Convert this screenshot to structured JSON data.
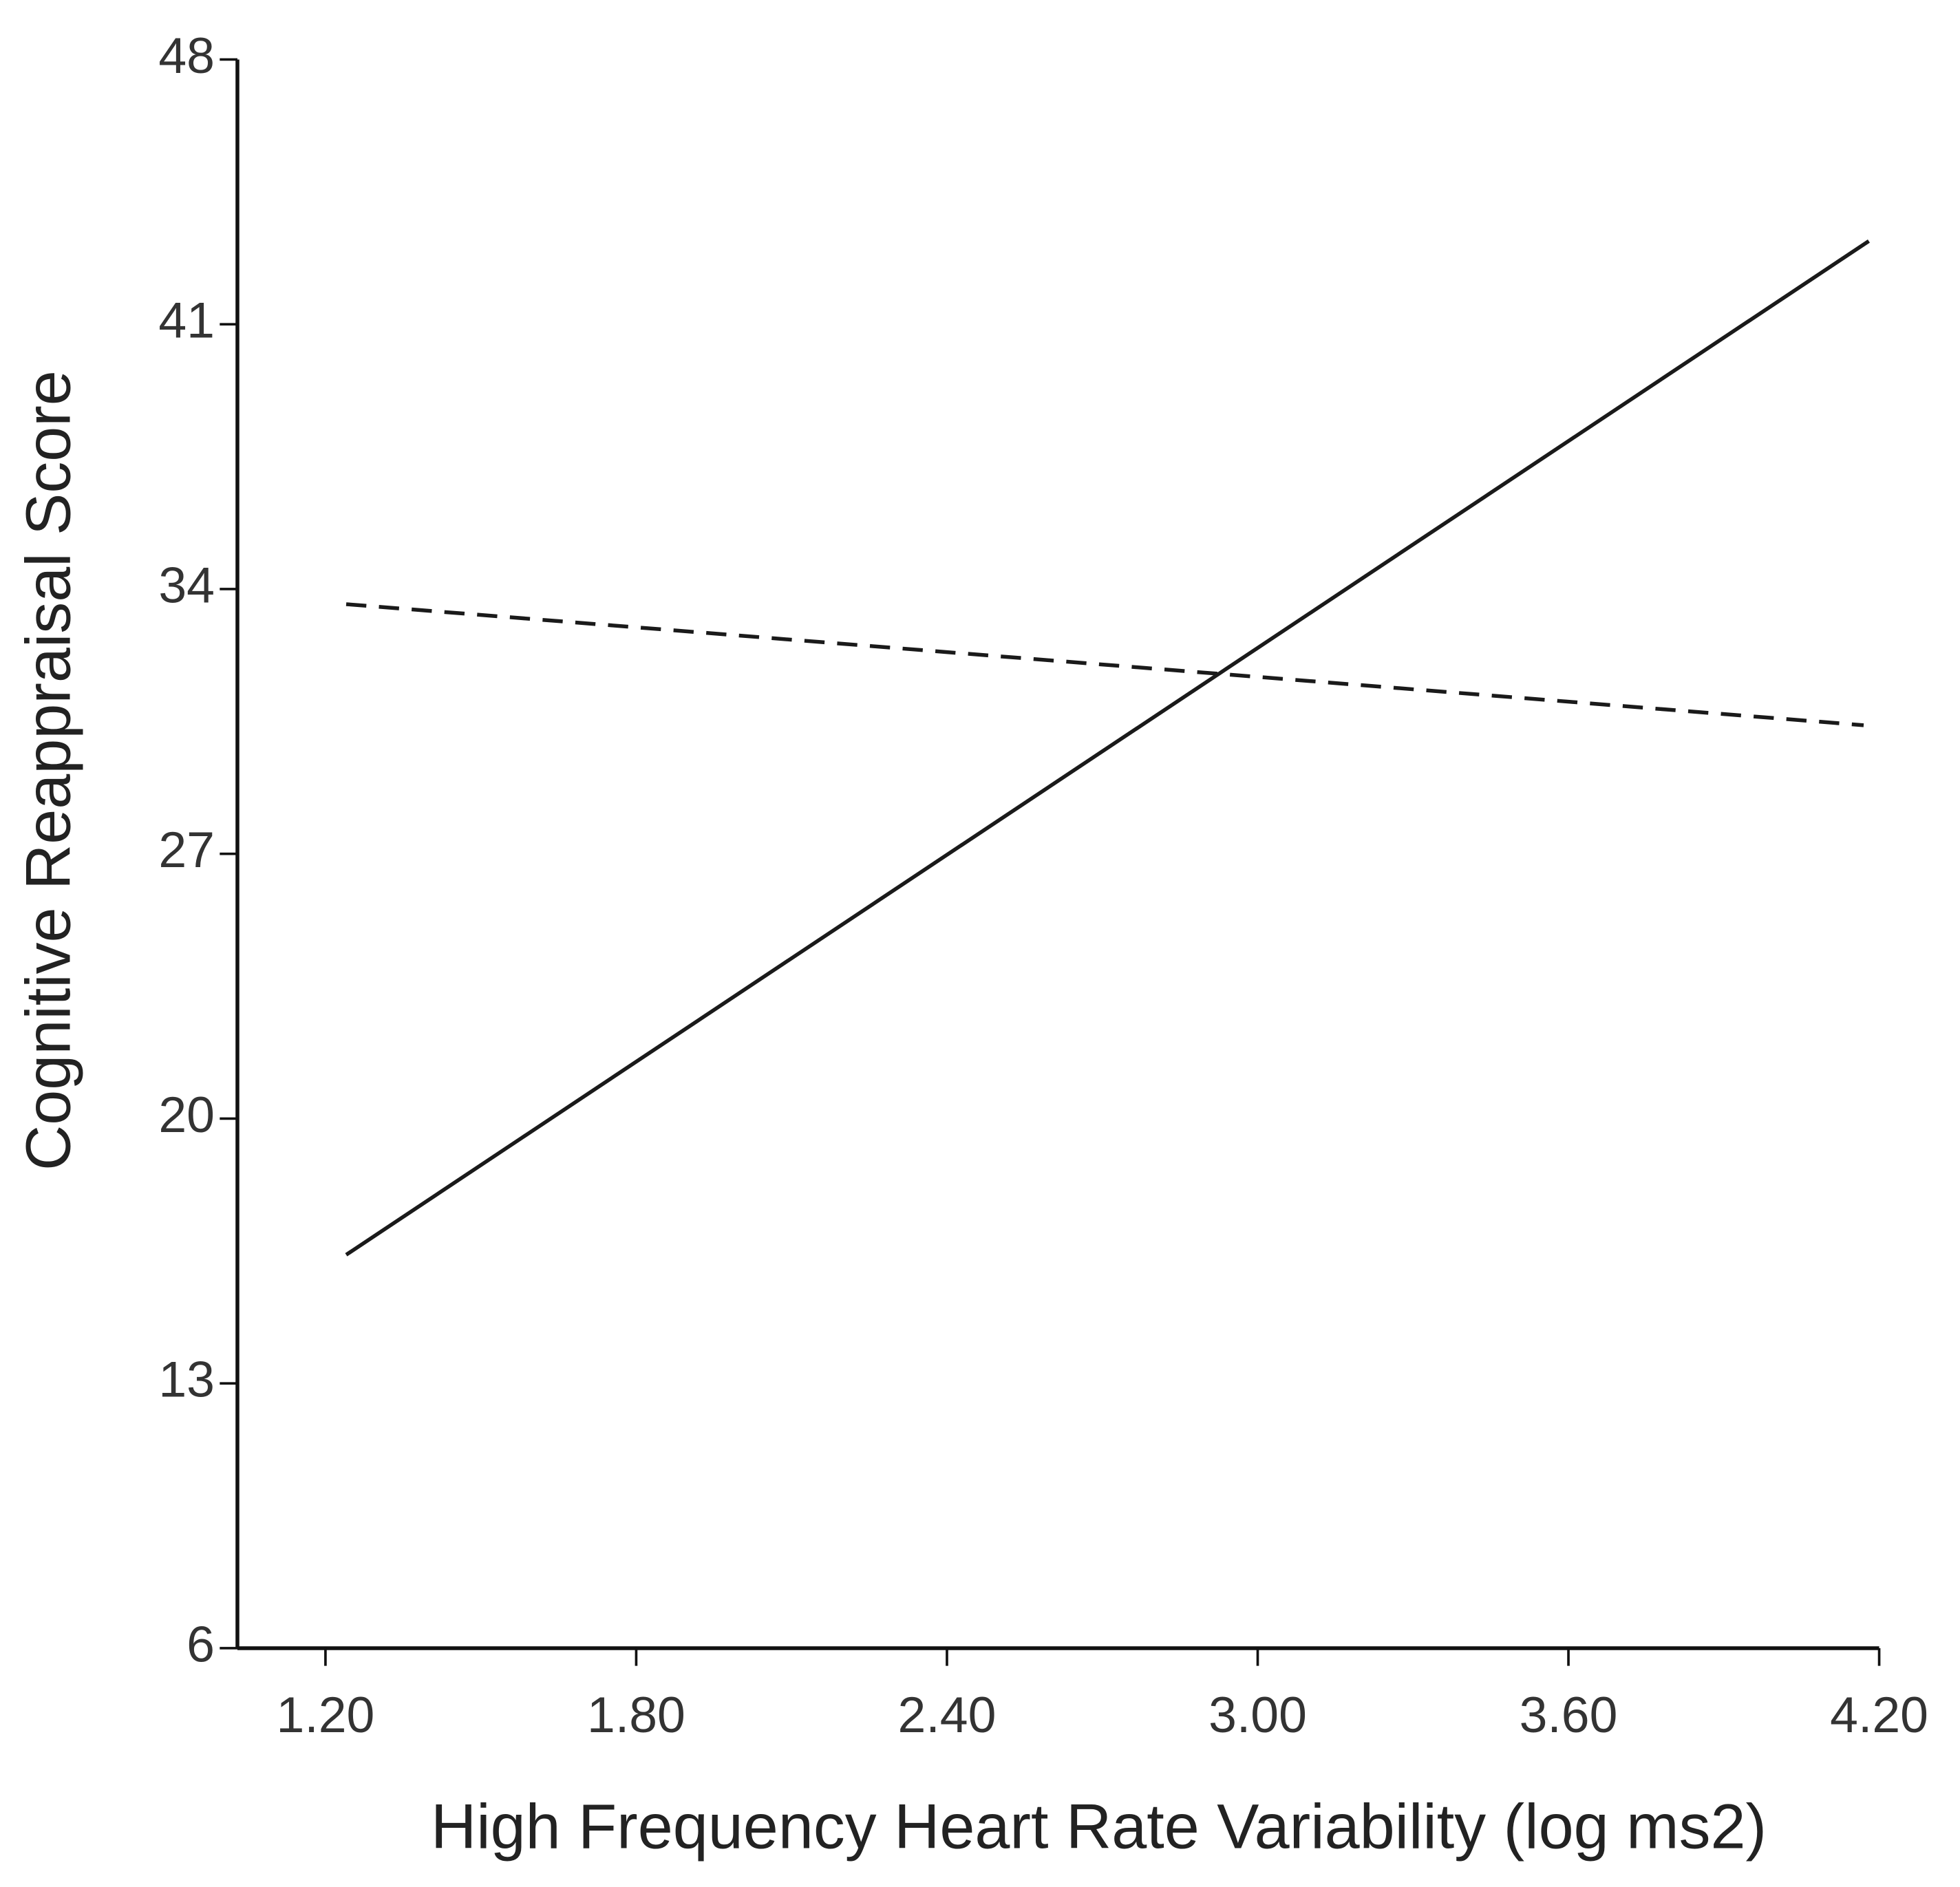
{
  "chart_data": {
    "type": "line",
    "x_label": "High Frequency Heart Rate Variability (log ms2)",
    "y_label": "Cognitive Reappraisal Score",
    "xlim": [
      1.03,
      4.2
    ],
    "xticks": [
      {
        "value": 1.2,
        "label": "1.20"
      },
      {
        "value": 1.8,
        "label": "1.80"
      },
      {
        "value": 2.4,
        "label": "2.40"
      },
      {
        "value": 3.0,
        "label": "3.00"
      },
      {
        "value": 3.6,
        "label": "3.60"
      },
      {
        "value": 4.2,
        "label": "4.20"
      }
    ],
    "ylim": [
      6,
      48
    ],
    "yticks": [
      6,
      13,
      20,
      27,
      34,
      41,
      48
    ],
    "grid": false,
    "series": [
      {
        "color": "#1a1a1a",
        "dashed": false,
        "x": [
          1.24,
          4.18
        ],
        "values": [
          16.4,
          43.2
        ]
      },
      {
        "color": "#1a1a1a",
        "dashed": true,
        "x": [
          1.24,
          4.17
        ],
        "values": [
          33.6,
          30.4
        ]
      }
    ]
  }
}
